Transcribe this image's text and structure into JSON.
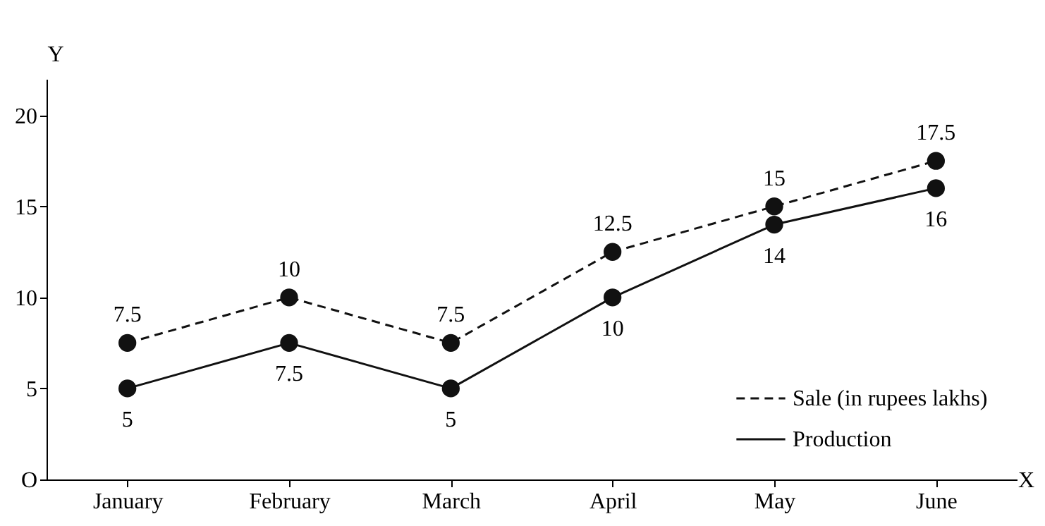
{
  "chart_data": {
    "type": "line",
    "xlabel": "X",
    "ylabel": "Y",
    "categories": [
      "January",
      "February",
      "March",
      "April",
      "May",
      "June"
    ],
    "series": [
      {
        "name": "Sale (in rupees lakhs)",
        "color": "#111111",
        "line_style": "dashed",
        "values": [
          7.5,
          10,
          7.5,
          12.5,
          15,
          17.5
        ]
      },
      {
        "name": "Production",
        "color": "#111111",
        "line_style": "solid",
        "values": [
          5,
          7.5,
          5,
          10,
          14,
          16
        ]
      }
    ],
    "ylim": [
      0,
      22
    ],
    "yticks": [
      {
        "value": 0,
        "label": "O"
      },
      5,
      10,
      15,
      20
    ],
    "marker": "circle",
    "data_labels": true,
    "grid": false,
    "legend": "bottom right"
  }
}
